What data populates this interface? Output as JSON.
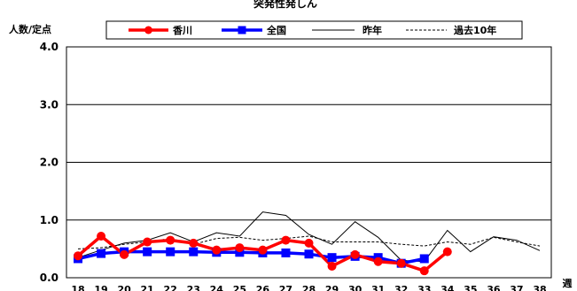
{
  "chart_data": {
    "type": "line",
    "title": "突発性発しん",
    "ylabel": "人数/定点",
    "xlabel": "週",
    "ylim": [
      0,
      4
    ],
    "yticks": [
      "0.0",
      "1.0",
      "2.0",
      "3.0",
      "4.0"
    ],
    "grid": true,
    "legend_position": "top",
    "categories": [
      "18",
      "19",
      "20",
      "21",
      "22",
      "23",
      "24",
      "25",
      "26",
      "27",
      "28",
      "29",
      "30",
      "31",
      "32",
      "33",
      "34",
      "35",
      "36",
      "37",
      "38"
    ],
    "series": [
      {
        "name": "香川",
        "color": "#ff0000",
        "style": "solid-thick",
        "marker": "circle",
        "values": [
          0.38,
          0.72,
          0.4,
          0.62,
          0.65,
          0.6,
          0.48,
          0.52,
          0.48,
          0.65,
          0.6,
          0.2,
          0.4,
          0.28,
          0.25,
          0.12,
          0.45,
          null,
          null,
          null,
          null
        ]
      },
      {
        "name": "全国",
        "color": "#0000ff",
        "style": "solid-thick",
        "marker": "square",
        "values": [
          0.33,
          0.42,
          0.45,
          0.45,
          0.45,
          0.45,
          0.44,
          0.44,
          0.43,
          0.43,
          0.41,
          0.35,
          0.37,
          0.35,
          0.25,
          0.33,
          null,
          null,
          null,
          null,
          null
        ]
      },
      {
        "name": "昨年",
        "color": "#000000",
        "style": "solid-thin",
        "marker": "none",
        "values": [
          0.35,
          0.48,
          0.6,
          0.65,
          0.78,
          0.62,
          0.78,
          0.72,
          1.14,
          1.08,
          0.75,
          0.58,
          0.97,
          0.7,
          0.3,
          0.28,
          0.82,
          0.45,
          0.71,
          0.65,
          0.47
        ]
      },
      {
        "name": "過去10年",
        "color": "#000000",
        "style": "dashed",
        "marker": "none",
        "values": [
          0.5,
          0.52,
          0.58,
          0.62,
          0.68,
          0.58,
          0.68,
          0.7,
          0.65,
          0.68,
          0.72,
          0.62,
          0.62,
          0.62,
          0.58,
          0.55,
          0.62,
          0.58,
          0.7,
          0.62,
          0.55
        ]
      }
    ]
  }
}
